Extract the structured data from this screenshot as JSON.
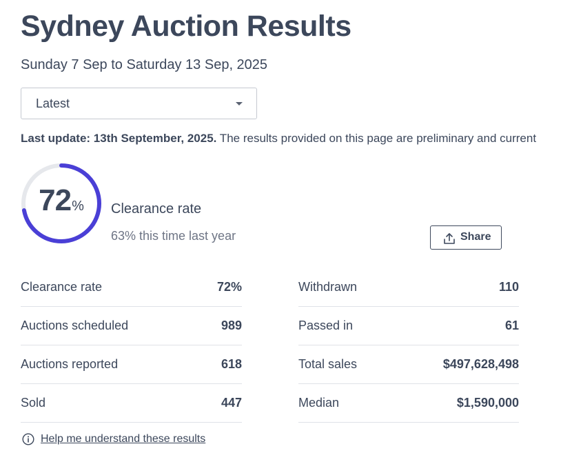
{
  "header": {
    "title": "Sydney Auction Results",
    "date_range": "Sunday 7 Sep to Saturday 13 Sep, 2025"
  },
  "filter": {
    "selected": "Latest"
  },
  "update": {
    "bold": "Last update: 13th September, 2025.",
    "text": " The results provided on this page are preliminary and current"
  },
  "clearance": {
    "rate_value": "72",
    "rate_fraction": 0.72,
    "percent_sign": "%",
    "label": "Clearance rate",
    "last_year": "63% this time last year",
    "accent_color": "#4a3fd6",
    "track_color": "#e6e8ec"
  },
  "share": {
    "label": "Share",
    "icon": "share-upload-icon"
  },
  "stats_left": [
    {
      "label": "Clearance rate",
      "value": "72%"
    },
    {
      "label": "Auctions scheduled",
      "value": "989"
    },
    {
      "label": "Auctions reported",
      "value": "618"
    },
    {
      "label": "Sold",
      "value": "447"
    }
  ],
  "stats_right": [
    {
      "label": "Withdrawn",
      "value": "110"
    },
    {
      "label": "Passed in",
      "value": "61"
    },
    {
      "label": "Total sales",
      "value": "$497,628,498"
    },
    {
      "label": "Median",
      "value": "$1,590,000"
    }
  ],
  "help": {
    "label": "Help me understand these results",
    "icon": "info-icon"
  }
}
